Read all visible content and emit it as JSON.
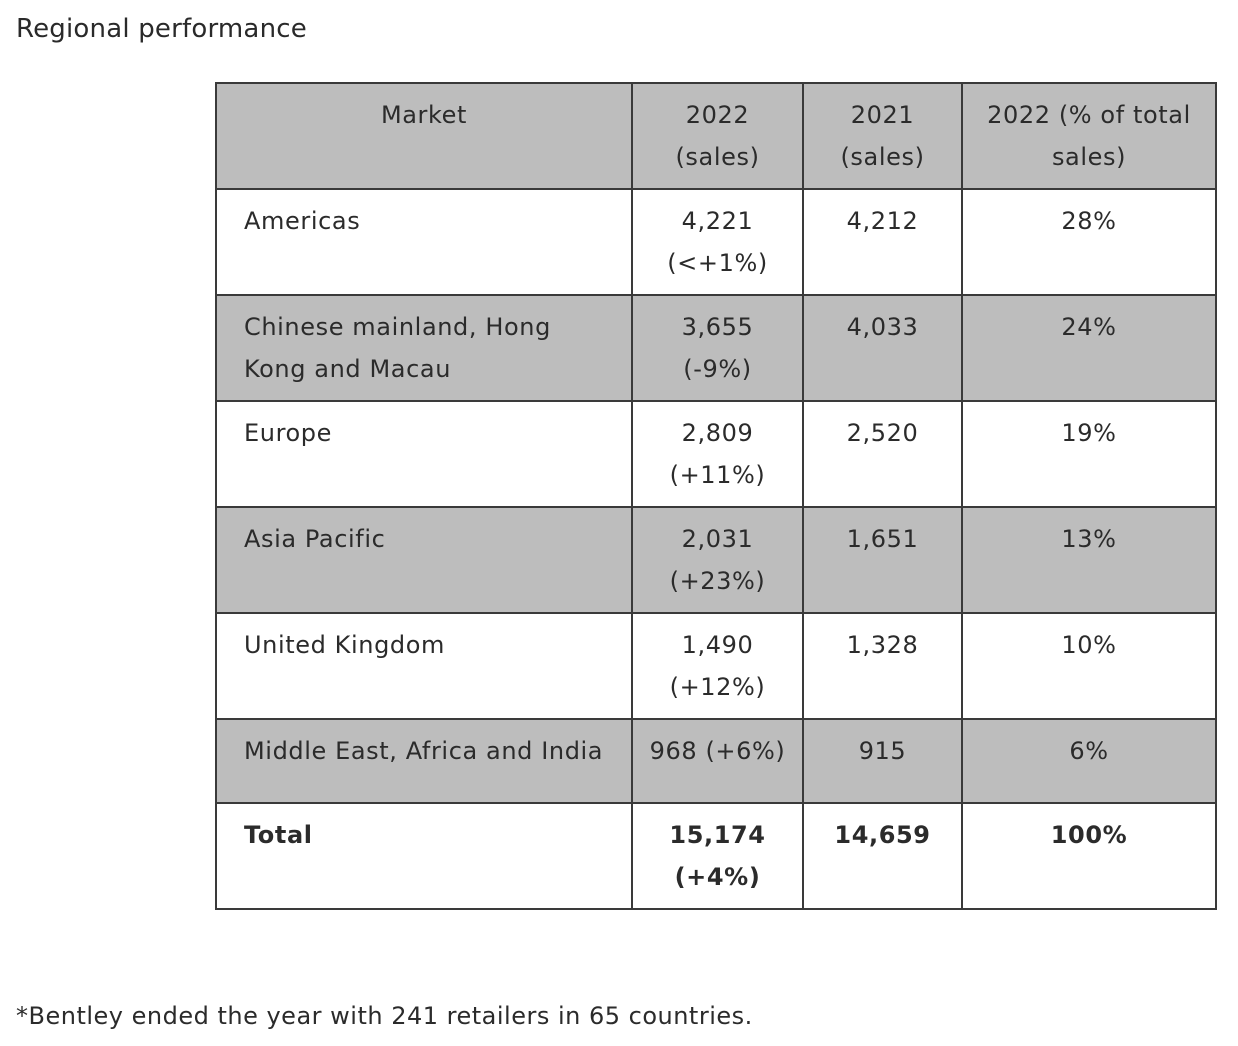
{
  "page": {
    "title": "Regional performance",
    "footnote": "*Bentley ended the year with 241 retailers in 65 countries."
  },
  "table": {
    "headers": {
      "market": "Market",
      "sales_2022": "2022 (sales)",
      "sales_2021": "2021 (sales)",
      "share_2022": "2022 (% of total sales)"
    },
    "rows": [
      {
        "market": "Americas",
        "sales_2022": "4,221 (<+1%)",
        "sales_2021": "4,212",
        "share_2022": "28%"
      },
      {
        "market": "Chinese mainland, Hong Kong and Macau",
        "sales_2022": "3,655 (-9%)",
        "sales_2021": "4,033",
        "share_2022": "24%"
      },
      {
        "market": "Europe",
        "sales_2022": "2,809 (+11%)",
        "sales_2021": "2,520",
        "share_2022": "19%"
      },
      {
        "market": "Asia Pacific",
        "sales_2022": "2,031 (+23%)",
        "sales_2021": "1,651",
        "share_2022": "13%"
      },
      {
        "market": "United Kingdom",
        "sales_2022": "1,490 (+12%)",
        "sales_2021": "1,328",
        "share_2022": "10%"
      },
      {
        "market": "Middle East, Africa and India",
        "sales_2022": "968 (+6%)",
        "sales_2021": "915",
        "share_2022": "6%"
      }
    ],
    "total": {
      "market": "Total",
      "sales_2022": "15,174 (+4%)",
      "sales_2021": "14,659",
      "share_2022": "100%"
    }
  },
  "colors": {
    "header_bg": "#bdbdbd",
    "shaded_row_bg": "#bdbdbd",
    "border": "#3a3a3a"
  }
}
